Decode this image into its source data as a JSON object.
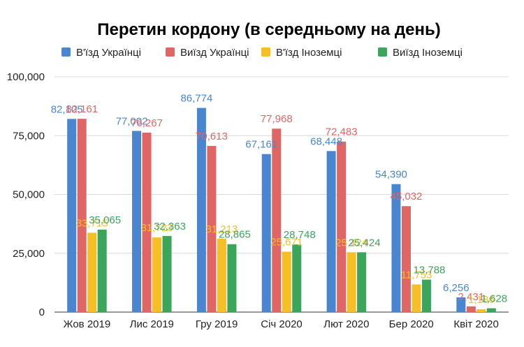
{
  "chart_data": {
    "type": "bar",
    "title": "Перетин кордону (в середньому на день)",
    "xlabel": "",
    "ylabel": "",
    "ylim": [
      0,
      100000
    ],
    "y_ticks": [
      "0",
      "25,000",
      "50,000",
      "75,000",
      "100,000"
    ],
    "y_tick_values": [
      0,
      25000,
      50000,
      75000,
      100000
    ],
    "grid": true,
    "legend_position": "top",
    "categories": [
      "Жов 2019",
      "Лис 2019",
      "Гру 2019",
      "Січ 2020",
      "Лют 2020",
      "Бер 2020",
      "Квіт 2020"
    ],
    "series": [
      {
        "name": "В'їзд Українці",
        "color": "#4a86d0",
        "values": [
          82105,
          77002,
          86774,
          67161,
          68448,
          54390,
          6256
        ],
        "labels": [
          "82,105",
          "77,002",
          "86,774",
          "67,161",
          "68,448",
          "54,390",
          "6,256"
        ]
      },
      {
        "name": "Виїзд Українці",
        "color": "#e06666",
        "values": [
          82161,
          76267,
          70613,
          77968,
          72483,
          45032,
          2431
        ],
        "labels": [
          "82,161",
          "76,267",
          "70,613",
          "77,968",
          "72,483",
          "45,032",
          "2,431"
        ]
      },
      {
        "name": "В'їзд Іноземці",
        "color": "#f6bf26",
        "values": [
          33715,
          31723,
          31213,
          25671,
          25424,
          11753,
          1186
        ],
        "labels": [
          "33,715",
          "31,723",
          "31,213",
          "25,671",
          "25,424",
          "11,753",
          "1,186"
        ]
      },
      {
        "name": "Виїзд Іноземці",
        "color": "#3ba55c",
        "values": [
          35065,
          32363,
          28865,
          28748,
          25424,
          13788,
          1628
        ],
        "labels": [
          "35,065",
          "32,363",
          "28,865",
          "28,748",
          "25,424",
          "13,788",
          "1,628"
        ]
      }
    ]
  }
}
